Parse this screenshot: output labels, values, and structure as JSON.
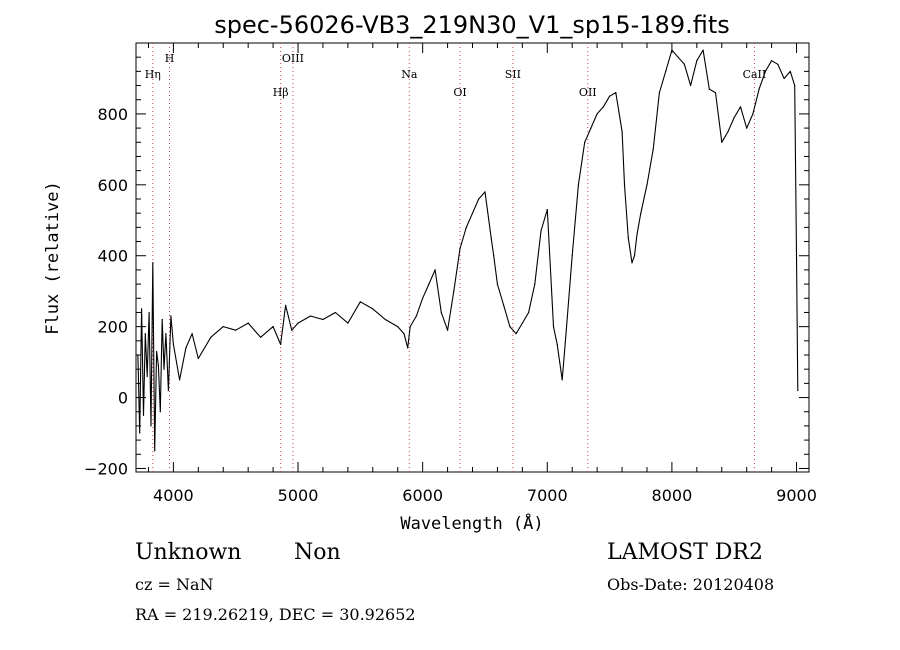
{
  "chart_data": {
    "type": "line",
    "title": "spec-56026-VB3_219N30_V1_sp15-189.fits",
    "xlabel": "Wavelength (Å)",
    "ylabel": "Flux (relative)",
    "xlim": [
      3700,
      9100
    ],
    "ylim": [
      -210,
      1000
    ],
    "x_ticks": [
      4000,
      5000,
      6000,
      7000,
      8000,
      9000
    ],
    "y_ticks": [
      -200,
      0,
      200,
      400,
      600,
      800
    ],
    "grid": false,
    "line_color": "#000000",
    "marker_color": "#d04040",
    "series": [
      {
        "name": "flux",
        "x": [
          3715,
          3730,
          3745,
          3760,
          3775,
          3790,
          3805,
          3820,
          3835,
          3850,
          3865,
          3880,
          3895,
          3910,
          3925,
          3940,
          3960,
          3980,
          4000,
          4050,
          4100,
          4150,
          4200,
          4300,
          4400,
          4500,
          4600,
          4700,
          4800,
          4860,
          4900,
          4950,
          5000,
          5100,
          5200,
          5300,
          5400,
          5500,
          5600,
          5700,
          5800,
          5850,
          5880,
          5900,
          5950,
          6000,
          6050,
          6100,
          6150,
          6200,
          6250,
          6300,
          6350,
          6400,
          6450,
          6500,
          6550,
          6570,
          6600,
          6650,
          6700,
          6750,
          6800,
          6850,
          6900,
          6950,
          7000,
          7050,
          7080,
          7100,
          7120,
          7150,
          7200,
          7250,
          7300,
          7350,
          7400,
          7450,
          7500,
          7550,
          7600,
          7620,
          7650,
          7680,
          7700,
          7720,
          7750,
          7800,
          7850,
          7900,
          7950,
          8000,
          8050,
          8100,
          8150,
          8200,
          8250,
          8300,
          8350,
          8400,
          8450,
          8500,
          8550,
          8600,
          8650,
          8700,
          8750,
          8800,
          8850,
          8900,
          8950,
          8985,
          9000,
          9010
        ],
        "y": [
          120,
          -100,
          250,
          -50,
          180,
          60,
          240,
          -80,
          380,
          -150,
          130,
          90,
          -40,
          220,
          80,
          180,
          20,
          230,
          150,
          50,
          140,
          180,
          110,
          170,
          200,
          190,
          210,
          170,
          200,
          150,
          260,
          190,
          210,
          230,
          220,
          240,
          210,
          270,
          250,
          220,
          200,
          180,
          140,
          200,
          230,
          280,
          320,
          360,
          240,
          190,
          300,
          420,
          480,
          520,
          560,
          580,
          450,
          400,
          320,
          260,
          200,
          180,
          210,
          240,
          320,
          470,
          530,
          200,
          150,
          100,
          50,
          180,
          400,
          600,
          720,
          760,
          800,
          820,
          850,
          860,
          750,
          600,
          450,
          380,
          400,
          460,
          520,
          600,
          700,
          860,
          920,
          980,
          960,
          940,
          880,
          950,
          980,
          870,
          860,
          720,
          750,
          790,
          820,
          760,
          800,
          870,
          920,
          950,
          940,
          900,
          920,
          880,
          400,
          20
        ]
      }
    ],
    "line_markers": [
      {
        "label": "Hη",
        "wavelength": 3835
      },
      {
        "label": "H",
        "wavelength": 3969
      },
      {
        "label": "Hβ",
        "wavelength": 4861
      },
      {
        "label": "OIII",
        "wavelength": 4959
      },
      {
        "label": "Na",
        "wavelength": 5893
      },
      {
        "label": "OI",
        "wavelength": 6300
      },
      {
        "label": "SII",
        "wavelength": 6724
      },
      {
        "label": "OII",
        "wavelength": 7325
      },
      {
        "label": "CaII",
        "wavelength": 8662
      }
    ]
  },
  "info": {
    "class": "Unknown",
    "subclass": "Non",
    "survey": "LAMOST DR2",
    "cz": "cz = NaN",
    "obs_date": "Obs-Date: 20120408",
    "coords": "RA = 219.26219, DEC =  30.92652"
  }
}
